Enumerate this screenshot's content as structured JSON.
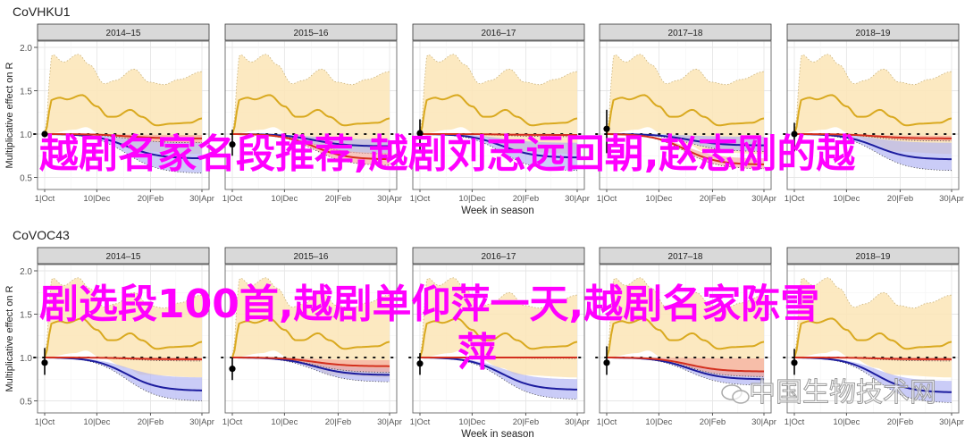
{
  "overlay_text": {
    "line1": "越剧名家名段推荐,越剧刘志远回朝,赵志刚的越",
    "line2": "剧选段100首,越剧单仰萍一天,越剧名家陈雪",
    "line3": "萍"
  },
  "watermark": "中国生物技术网",
  "colors": {
    "yellow": "#d9a91f",
    "yellow_band": "#fbe5b6",
    "blue": "#1c1c9e",
    "blue_band": "#aeb0f2",
    "red": "#d32f1e",
    "red_band": "#f4a79d",
    "strip": "#d9d9d9"
  },
  "chart_data": [
    {
      "type": "line",
      "title": "CoVHKU1",
      "xlabel": "Week in season",
      "ylabel": "Multiplicative effect on R",
      "x_ticks": [
        "1|Oct",
        "10|Dec",
        "20|Feb",
        "30|Apr"
      ],
      "x_tick_days": [
        0,
        70,
        142,
        211
      ],
      "y_ticks": [
        "0.5",
        "1.0",
        "1.5",
        "2.0"
      ],
      "ylim": [
        0.35,
        2.07
      ],
      "grid": true,
      "panels": [
        {
          "season": "2014–15",
          "start": {
            "value": 1.0,
            "lo": 1.0,
            "hi": 1.0
          },
          "red": {
            "final": 0.95,
            "lo": 0.9,
            "hi": 0.99,
            "mid": 110
          },
          "blue": {
            "final": 0.72,
            "lo": 0.55,
            "hi": 0.9,
            "mid": 110
          }
        },
        {
          "season": "2015–16",
          "start": {
            "value": 0.88,
            "lo": 0.75,
            "hi": 1.05
          },
          "red": {
            "final": 0.71,
            "lo": 0.64,
            "hi": 0.78,
            "mid": 110
          },
          "blue": {
            "final": 0.86,
            "lo": 0.77,
            "hi": 0.94,
            "mid": 110
          }
        },
        {
          "season": "2016–17",
          "start": {
            "value": 1.01,
            "lo": 0.78,
            "hi": 1.17
          },
          "red": {
            "final": 0.99,
            "lo": 0.97,
            "hi": 1.0,
            "mid": 110
          },
          "blue": {
            "final": 0.73,
            "lo": 0.58,
            "hi": 0.9,
            "mid": 110
          }
        },
        {
          "season": "2017–18",
          "start": {
            "value": 1.06,
            "lo": 0.78,
            "hi": 1.28
          },
          "red": {
            "final": 0.65,
            "lo": 0.6,
            "hi": 0.72,
            "mid": 105
          },
          "blue": {
            "final": 0.87,
            "lo": 0.8,
            "hi": 0.97,
            "mid": 110
          }
        },
        {
          "season": "2018–19",
          "start": {
            "value": 1.0,
            "lo": 0.8,
            "hi": 1.13
          },
          "red": {
            "final": 0.95,
            "lo": 0.92,
            "hi": 0.98,
            "mid": 110
          },
          "blue": {
            "final": 0.71,
            "lo": 0.58,
            "hi": 0.9,
            "mid": 110
          }
        }
      ]
    },
    {
      "type": "line",
      "title": "CoVOC43",
      "xlabel": "Week in season",
      "ylabel": "Multiplicative effect on R",
      "x_ticks": [
        "1|Oct",
        "10|Dec",
        "20|Feb",
        "30|Apr"
      ],
      "x_tick_days": [
        0,
        70,
        142,
        211
      ],
      "y_ticks": [
        "0.5",
        "1.0",
        "1.5",
        "2.0"
      ],
      "ylim": [
        0.35,
        2.07
      ],
      "grid": true,
      "panels": [
        {
          "season": "2014–15",
          "start": {
            "value": 0.94,
            "lo": 0.8,
            "hi": 1.11
          },
          "red": {
            "final": 0.98,
            "lo": 0.96,
            "hi": 1.0,
            "mid": 110
          },
          "blue": {
            "final": 0.62,
            "lo": 0.5,
            "hi": 0.77,
            "mid": 110
          }
        },
        {
          "season": "2015–16",
          "start": {
            "value": 0.87,
            "lo": 0.74,
            "hi": 1.0
          },
          "red": {
            "final": 0.9,
            "lo": 0.83,
            "hi": 0.97,
            "mid": 110
          },
          "blue": {
            "final": 0.8,
            "lo": 0.72,
            "hi": 0.88,
            "mid": 110
          }
        },
        {
          "season": "2016–17",
          "start": {
            "value": 0.93,
            "lo": 0.8,
            "hi": 1.05
          },
          "red": {
            "final": 1.0,
            "lo": 0.99,
            "hi": 1.01,
            "mid": 110
          },
          "blue": {
            "final": 0.63,
            "lo": 0.52,
            "hi": 0.75,
            "mid": 110
          }
        },
        {
          "season": "2017–18",
          "start": {
            "value": 0.94,
            "lo": 0.8,
            "hi": 1.13
          },
          "red": {
            "final": 0.84,
            "lo": 0.78,
            "hi": 0.99,
            "mid": 110
          },
          "blue": {
            "final": 0.75,
            "lo": 0.68,
            "hi": 0.83,
            "mid": 110
          }
        },
        {
          "season": "2018–19",
          "start": {
            "value": 0.94,
            "lo": 0.8,
            "hi": 1.1
          },
          "red": {
            "final": 0.98,
            "lo": 0.96,
            "hi": 1.0,
            "mid": 110
          },
          "blue": {
            "final": 0.6,
            "lo": 0.48,
            "hi": 0.73,
            "mid": 110
          }
        }
      ],
      "yellow_median": [
        [
          0,
          1.0
        ],
        [
          10,
          1.4
        ],
        [
          20,
          1.42
        ],
        [
          30,
          1.4
        ],
        [
          50,
          1.45
        ],
        [
          70,
          1.32
        ],
        [
          85,
          1.2
        ],
        [
          95,
          1.2
        ],
        [
          115,
          1.28
        ],
        [
          130,
          1.2
        ],
        [
          150,
          1.1
        ],
        [
          170,
          1.12
        ],
        [
          195,
          1.13
        ],
        [
          211,
          1.18
        ]
      ]
    }
  ],
  "yellow": {
    "median": [
      [
        0,
        1.0
      ],
      [
        10,
        1.4
      ],
      [
        20,
        1.42
      ],
      [
        30,
        1.4
      ],
      [
        50,
        1.45
      ],
      [
        70,
        1.32
      ],
      [
        85,
        1.2
      ],
      [
        95,
        1.2
      ],
      [
        115,
        1.28
      ],
      [
        130,
        1.2
      ],
      [
        150,
        1.1
      ],
      [
        170,
        1.12
      ],
      [
        195,
        1.13
      ],
      [
        211,
        1.18
      ]
    ],
    "upper": [
      [
        0,
        1.0
      ],
      [
        10,
        1.92
      ],
      [
        25,
        1.83
      ],
      [
        45,
        1.92
      ],
      [
        60,
        1.8
      ],
      [
        80,
        1.58
      ],
      [
        95,
        1.62
      ],
      [
        120,
        1.75
      ],
      [
        140,
        1.6
      ],
      [
        160,
        1.57
      ],
      [
        180,
        1.63
      ],
      [
        211,
        1.72
      ]
    ],
    "lower": [
      [
        0,
        1.0
      ],
      [
        40,
        1.05
      ],
      [
        55,
        1.08
      ],
      [
        75,
        1.0
      ],
      [
        110,
        0.88
      ],
      [
        130,
        0.8
      ],
      [
        211,
        0.77
      ]
    ]
  }
}
